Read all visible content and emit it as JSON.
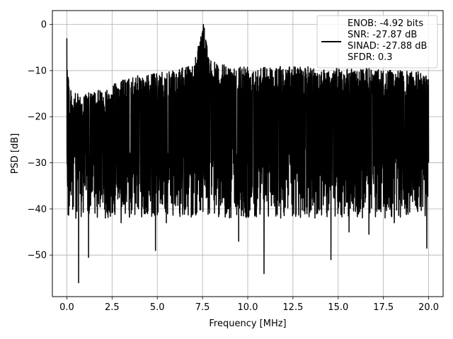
{
  "chart_data": {
    "type": "line",
    "title": "",
    "xlabel": "Frequency [MHz]",
    "ylabel": "PSD [dB]",
    "xlim": [
      -0.8,
      20.8
    ],
    "ylim": [
      -59,
      3
    ],
    "x_ticks": [
      0.0,
      2.5,
      5.0,
      7.5,
      10.0,
      12.5,
      15.0,
      17.5,
      20.0
    ],
    "x_tick_labels": [
      "0.0",
      "2.5",
      "5.0",
      "7.5",
      "10.0",
      "12.5",
      "15.0",
      "17.5",
      "20.0"
    ],
    "y_ticks": [
      0,
      -10,
      -20,
      -30,
      -40,
      -50
    ],
    "y_tick_labels": [
      "0",
      "−10",
      "−20",
      "−30",
      "−40",
      "−50"
    ],
    "grid": true,
    "legend_position": "top-right",
    "colors": {
      "series": "#000000",
      "grid": "#b0b0b0"
    },
    "series": [
      {
        "name": "ENOB: -4.92 bits\nSNR: -27.87 dB\nSINAD: -27.88 dB\nSFDR: 0.3",
        "legend_lines": [
          "ENOB: -4.92 bits",
          "SNR: -27.87 dB",
          "SINAD: -27.88 dB",
          "SFDR: 0.3"
        ],
        "x_range": [
          0.0,
          20.0
        ],
        "upper_envelope": [
          [
            0.0,
            -3.0
          ],
          [
            0.15,
            -14.0
          ],
          [
            0.5,
            -15.0
          ],
          [
            1.0,
            -15.0
          ],
          [
            2.0,
            -14.0
          ],
          [
            3.0,
            -12.0
          ],
          [
            4.0,
            -11.0
          ],
          [
            5.0,
            -10.5
          ],
          [
            6.0,
            -10.0
          ],
          [
            7.0,
            -8.5
          ],
          [
            7.5,
            0.0
          ],
          [
            8.0,
            -8.0
          ],
          [
            9.0,
            -9.0
          ],
          [
            10.0,
            -8.5
          ],
          [
            11.0,
            -9.0
          ],
          [
            12.0,
            -9.0
          ],
          [
            13.0,
            -9.0
          ],
          [
            14.0,
            -9.5
          ],
          [
            15.0,
            -9.5
          ],
          [
            16.0,
            -9.5
          ],
          [
            17.0,
            -9.5
          ],
          [
            18.0,
            -10.0
          ],
          [
            19.0,
            -10.0
          ],
          [
            20.0,
            -10.5
          ]
        ],
        "lower_dips": [
          [
            0.5,
            -42.0
          ],
          [
            0.65,
            -56.0
          ],
          [
            1.2,
            -50.5
          ],
          [
            3.0,
            -43.0
          ],
          [
            4.9,
            -49.0
          ],
          [
            5.5,
            -43.0
          ],
          [
            9.5,
            -47.0
          ],
          [
            10.9,
            -54.0
          ],
          [
            14.6,
            -51.0
          ],
          [
            15.6,
            -45.0
          ],
          [
            16.7,
            -45.5
          ],
          [
            18.1,
            -43.0
          ],
          [
            19.9,
            -48.5
          ]
        ],
        "noise_floor_band": [
          -37.0,
          -13.0
        ]
      }
    ]
  }
}
